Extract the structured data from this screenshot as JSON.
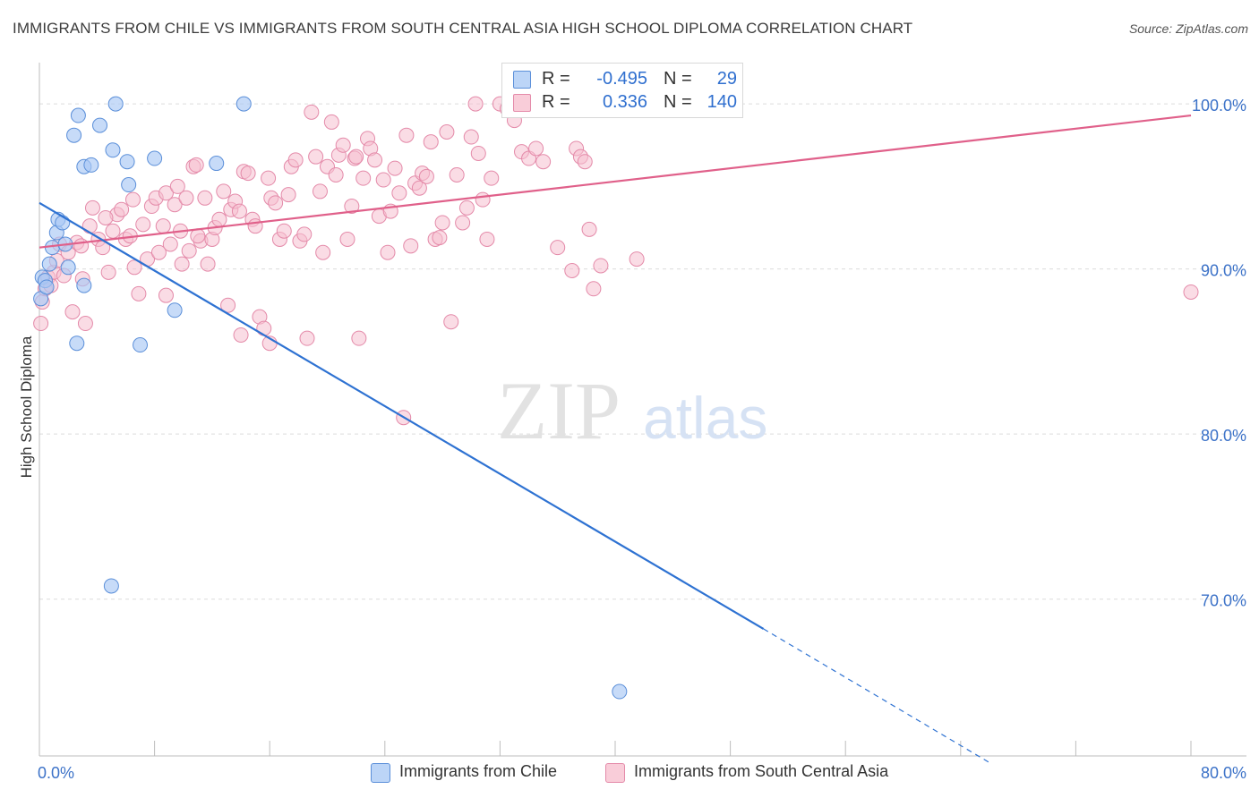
{
  "header": {
    "title": "IMMIGRANTS FROM CHILE VS IMMIGRANTS FROM SOUTH CENTRAL ASIA HIGH SCHOOL DIPLOMA CORRELATION CHART",
    "source": "Source: ZipAtlas.com"
  },
  "watermark": {
    "zip": "ZIP",
    "atlas": "atlas"
  },
  "legend": {
    "rows": [
      {
        "r_label": "R =",
        "r_value": "-0.495",
        "n_label": "N =",
        "n_value": "29"
      },
      {
        "r_label": "R =",
        "r_value": "0.336",
        "n_label": "N =",
        "n_value": "140"
      }
    ]
  },
  "bottom_legend": {
    "chile": "Immigrants from Chile",
    "sca": "Immigrants from South Central Asia"
  },
  "colors": {
    "chile_fill": "#a9c8f5",
    "chile_stroke": "#5b8fd9",
    "chile_line": "#2e72d2",
    "sca_fill": "#f6bfd0",
    "sca_stroke": "#e48aa9",
    "sca_line": "#e0608a",
    "grid": "#dcdcdc",
    "tick_label": "#3c72c8"
  },
  "chart_data": {
    "type": "scatter",
    "title": "IMMIGRANTS FROM CHILE VS IMMIGRANTS FROM SOUTH CENTRAL ASIA HIGH SCHOOL DIPLOMA CORRELATION CHART",
    "xlabel": "",
    "ylabel": "High School Diploma",
    "xlim": [
      0,
      80
    ],
    "ylim": [
      60.5,
      102.5
    ],
    "x_tick_labels": [
      "0.0%",
      "80.0%"
    ],
    "y_ticks": [
      70,
      80,
      90,
      100
    ],
    "y_tick_labels": [
      "70.0%",
      "80.0%",
      "90.0%",
      "100.0%"
    ],
    "series": [
      {
        "name": "Immigrants from Chile",
        "points": [
          [
            0.1,
            88.2
          ],
          [
            0.2,
            89.5
          ],
          [
            0.4,
            89.3
          ],
          [
            0.5,
            88.9
          ],
          [
            0.7,
            90.3
          ],
          [
            0.9,
            91.3
          ],
          [
            1.2,
            92.2
          ],
          [
            1.3,
            93.0
          ],
          [
            1.6,
            92.8
          ],
          [
            1.8,
            91.5
          ],
          [
            2.0,
            90.1
          ],
          [
            2.4,
            98.1
          ],
          [
            2.7,
            99.3
          ],
          [
            3.1,
            96.2
          ],
          [
            3.6,
            96.3
          ],
          [
            4.2,
            98.7
          ],
          [
            5.1,
            97.2
          ],
          [
            5.3,
            100.0
          ],
          [
            6.1,
            96.5
          ],
          [
            6.2,
            95.1
          ],
          [
            2.6,
            85.5
          ],
          [
            3.1,
            89.0
          ],
          [
            7.0,
            85.4
          ],
          [
            8.0,
            96.7
          ],
          [
            9.4,
            87.5
          ],
          [
            12.3,
            96.4
          ],
          [
            14.2,
            100.0
          ],
          [
            5.0,
            70.8
          ],
          [
            40.3,
            64.4
          ]
        ],
        "trend": {
          "x0": 0,
          "y0": 94.0,
          "x1": 50.3,
          "y1": 68.2,
          "dash_x1": 66.0,
          "dash_y1": 60.1
        }
      },
      {
        "name": "Immigrants from South Central Asia",
        "points": [
          [
            0.1,
            86.7
          ],
          [
            0.2,
            88.0
          ],
          [
            0.4,
            88.8
          ],
          [
            0.6,
            89.5
          ],
          [
            0.8,
            89.0
          ],
          [
            1.0,
            89.8
          ],
          [
            1.2,
            90.5
          ],
          [
            1.4,
            91.5
          ],
          [
            1.7,
            89.6
          ],
          [
            2.0,
            91.0
          ],
          [
            2.3,
            87.4
          ],
          [
            2.6,
            91.6
          ],
          [
            2.9,
            91.4
          ],
          [
            3.2,
            86.7
          ],
          [
            3.5,
            92.6
          ],
          [
            3.7,
            93.7
          ],
          [
            4.1,
            91.8
          ],
          [
            4.4,
            91.3
          ],
          [
            4.8,
            89.8
          ],
          [
            5.1,
            92.3
          ],
          [
            5.4,
            93.3
          ],
          [
            5.7,
            93.6
          ],
          [
            6.0,
            91.8
          ],
          [
            6.3,
            92.0
          ],
          [
            6.6,
            90.1
          ],
          [
            6.9,
            88.5
          ],
          [
            7.2,
            92.7
          ],
          [
            7.5,
            90.6
          ],
          [
            7.8,
            93.8
          ],
          [
            8.1,
            94.3
          ],
          [
            8.3,
            91.0
          ],
          [
            8.6,
            92.6
          ],
          [
            8.8,
            94.6
          ],
          [
            9.1,
            91.5
          ],
          [
            9.4,
            93.9
          ],
          [
            9.6,
            95.0
          ],
          [
            9.9,
            90.3
          ],
          [
            10.2,
            94.3
          ],
          [
            10.4,
            91.1
          ],
          [
            10.7,
            96.2
          ],
          [
            10.9,
            96.3
          ],
          [
            11.2,
            91.7
          ],
          [
            11.5,
            94.3
          ],
          [
            11.7,
            90.3
          ],
          [
            12.0,
            91.8
          ],
          [
            12.2,
            92.5
          ],
          [
            12.5,
            93.0
          ],
          [
            12.8,
            94.7
          ],
          [
            13.1,
            87.8
          ],
          [
            13.3,
            93.6
          ],
          [
            13.6,
            94.1
          ],
          [
            13.9,
            93.5
          ],
          [
            14.2,
            95.9
          ],
          [
            14.5,
            95.8
          ],
          [
            14.8,
            93.0
          ],
          [
            15.0,
            92.6
          ],
          [
            15.3,
            87.1
          ],
          [
            15.6,
            86.4
          ],
          [
            15.9,
            95.5
          ],
          [
            16.1,
            94.3
          ],
          [
            16.4,
            94.0
          ],
          [
            16.7,
            91.8
          ],
          [
            17.0,
            92.3
          ],
          [
            17.3,
            94.5
          ],
          [
            17.5,
            96.2
          ],
          [
            17.8,
            96.6
          ],
          [
            18.1,
            91.7
          ],
          [
            18.4,
            92.1
          ],
          [
            18.6,
            85.8
          ],
          [
            18.9,
            99.5
          ],
          [
            19.2,
            96.8
          ],
          [
            19.5,
            94.7
          ],
          [
            19.7,
            91.0
          ],
          [
            20.0,
            96.2
          ],
          [
            20.3,
            98.9
          ],
          [
            20.6,
            95.7
          ],
          [
            20.8,
            96.9
          ],
          [
            21.1,
            97.5
          ],
          [
            21.4,
            91.8
          ],
          [
            21.7,
            93.8
          ],
          [
            21.9,
            96.7
          ],
          [
            22.2,
            85.8
          ],
          [
            22.5,
            95.5
          ],
          [
            22.8,
            97.9
          ],
          [
            23.0,
            97.3
          ],
          [
            23.3,
            96.6
          ],
          [
            23.6,
            93.2
          ],
          [
            23.9,
            95.4
          ],
          [
            24.2,
            91.0
          ],
          [
            24.4,
            93.5
          ],
          [
            24.7,
            96.1
          ],
          [
            25.0,
            94.6
          ],
          [
            25.3,
            81.0
          ],
          [
            25.5,
            98.1
          ],
          [
            25.8,
            91.4
          ],
          [
            26.1,
            95.2
          ],
          [
            26.4,
            94.9
          ],
          [
            26.6,
            95.8
          ],
          [
            26.9,
            95.6
          ],
          [
            27.2,
            97.7
          ],
          [
            27.5,
            91.8
          ],
          [
            27.8,
            91.9
          ],
          [
            28.0,
            92.8
          ],
          [
            28.3,
            98.3
          ],
          [
            28.6,
            86.8
          ],
          [
            29.0,
            95.7
          ],
          [
            29.4,
            92.8
          ],
          [
            29.7,
            93.7
          ],
          [
            30.0,
            98.0
          ],
          [
            30.3,
            100.0
          ],
          [
            30.5,
            97.0
          ],
          [
            30.8,
            94.2
          ],
          [
            31.1,
            91.8
          ],
          [
            31.4,
            95.5
          ],
          [
            32.0,
            100.0
          ],
          [
            32.5,
            99.7
          ],
          [
            33.0,
            99.0
          ],
          [
            33.5,
            97.1
          ],
          [
            34.0,
            96.7
          ],
          [
            34.5,
            97.3
          ],
          [
            35.0,
            96.5
          ],
          [
            36.0,
            91.3
          ],
          [
            37.0,
            89.9
          ],
          [
            37.3,
            97.3
          ],
          [
            37.6,
            96.8
          ],
          [
            37.9,
            96.5
          ],
          [
            38.2,
            92.4
          ],
          [
            38.5,
            88.8
          ],
          [
            39.0,
            90.2
          ],
          [
            41.5,
            90.6
          ],
          [
            8.8,
            88.4
          ],
          [
            11.0,
            92.0
          ],
          [
            14.0,
            86.0
          ],
          [
            16.0,
            85.5
          ],
          [
            22.0,
            96.8
          ],
          [
            80.0,
            88.6
          ],
          [
            6.5,
            94.2
          ],
          [
            3.0,
            89.4
          ],
          [
            4.6,
            93.1
          ],
          [
            9.8,
            92.3
          ]
        ],
        "trend": {
          "x0": 0,
          "y0": 91.3,
          "x1": 80,
          "y1": 99.3
        }
      }
    ]
  }
}
